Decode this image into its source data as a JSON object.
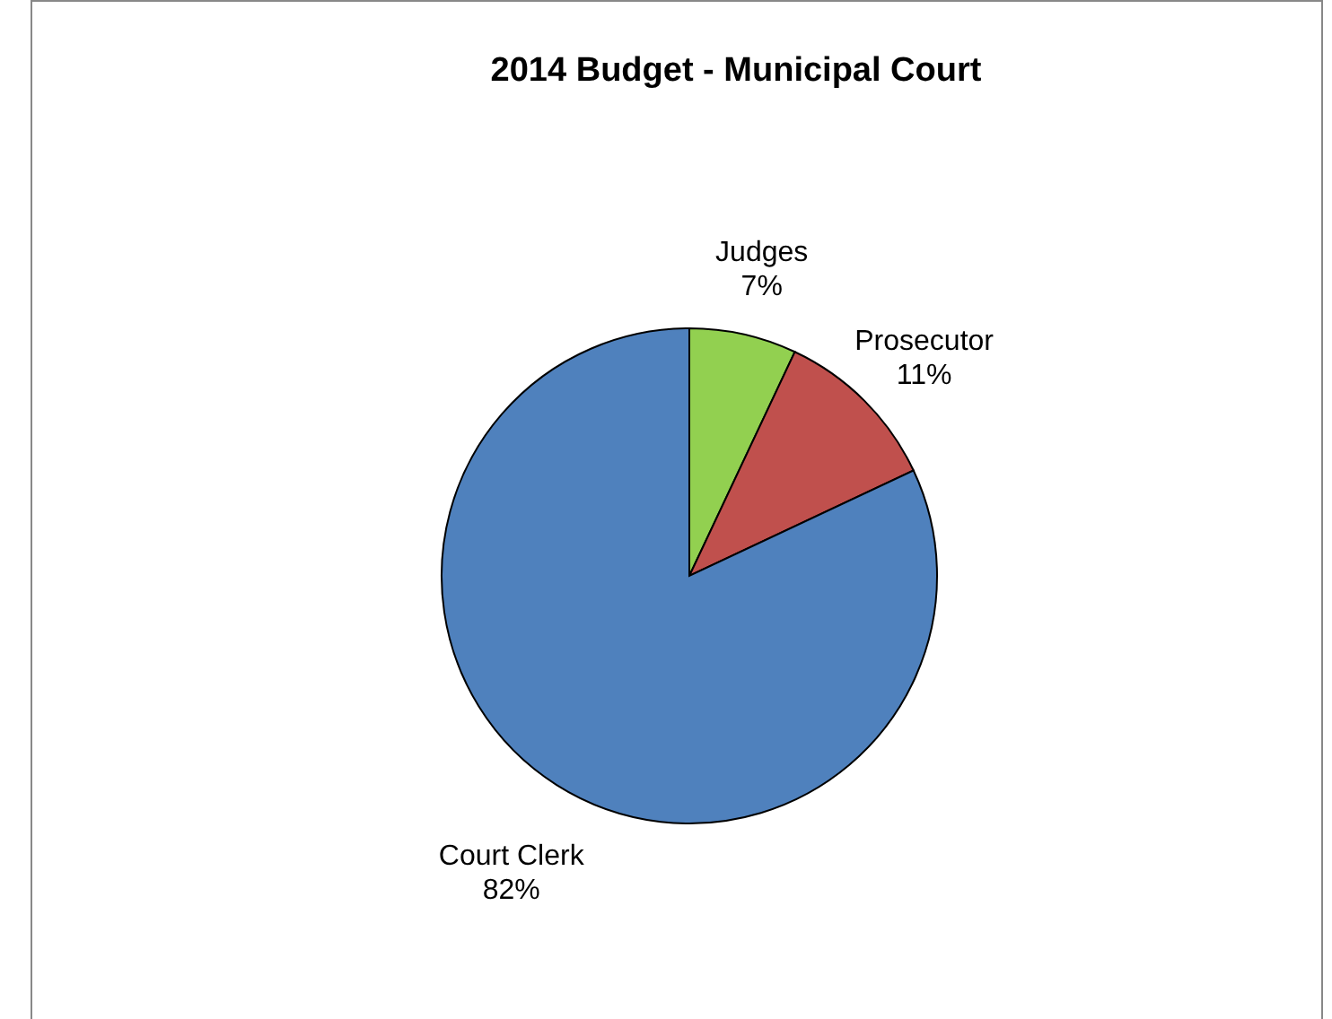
{
  "chart_data": {
    "type": "pie",
    "title": "2014 Budget - Municipal Court",
    "categories": [
      "Judges",
      "Prosecutor",
      "Court Clerk"
    ],
    "values": [
      7,
      11,
      82
    ],
    "value_labels": [
      "7%",
      "11%",
      "82%"
    ],
    "colors": [
      "#92d050",
      "#c0504d",
      "#4f81bd"
    ],
    "legend": false
  }
}
